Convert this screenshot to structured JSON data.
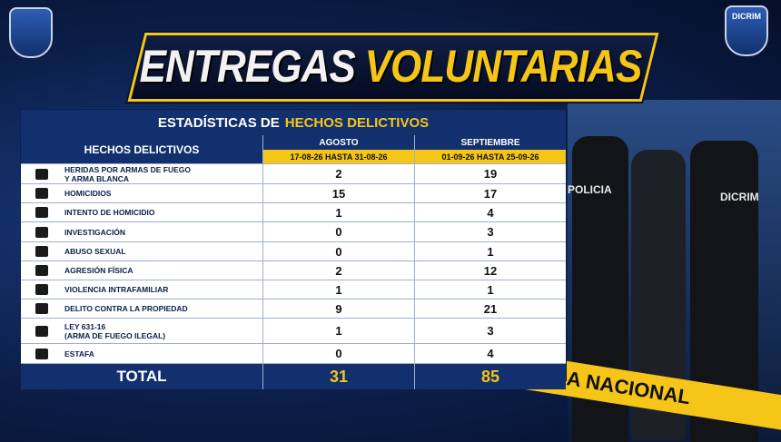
{
  "header": {
    "title_part1": "ENTREGAS",
    "title_part2": "VOLUNTARIAS",
    "badge_right": "DICRIM"
  },
  "table": {
    "title_part1": "ESTADÍSTICAS DE",
    "title_part2": "HECHOS DELICTIVOS",
    "column_header": "HECHOS DELICTIVOS",
    "periods": [
      {
        "name": "AGOSTO",
        "range": "17-08-26 HASTA 31-08-26"
      },
      {
        "name": "SEPTIEMBRE",
        "range": "01-09-26 HASTA 25-09-26"
      }
    ],
    "rows": [
      {
        "label": "HERIDAS POR ARMAS DE FUEGO\nY ARMA BLANCA",
        "values": [
          2,
          19
        ]
      },
      {
        "label": "HOMICIDIOS",
        "values": [
          15,
          17
        ]
      },
      {
        "label": "INTENTO DE HOMICIDIO",
        "values": [
          1,
          4
        ]
      },
      {
        "label": "INVESTIGACIÓN",
        "values": [
          0,
          3
        ]
      },
      {
        "label": "ABUSO SEXUAL",
        "values": [
          0,
          1
        ]
      },
      {
        "label": "AGRESIÓN FÍSICA",
        "values": [
          2,
          12
        ]
      },
      {
        "label": "VIOLENCIA INTRAFAMILIAR",
        "values": [
          1,
          1
        ]
      },
      {
        "label": "DELITO CONTRA LA PROPIEDAD",
        "values": [
          9,
          21
        ]
      },
      {
        "label": "LEY 631-16\n(ARMA DE FUEGO ILEGAL)",
        "values": [
          1,
          3
        ]
      },
      {
        "label": "ESTAFA",
        "values": [
          0,
          4
        ]
      }
    ],
    "total": {
      "label": "TOTAL",
      "values": [
        31,
        85
      ]
    }
  },
  "background": {
    "vest_left": "POLICIA",
    "vest_right": "DICRIM",
    "tape_text": "POLICIA NACIONAL"
  }
}
